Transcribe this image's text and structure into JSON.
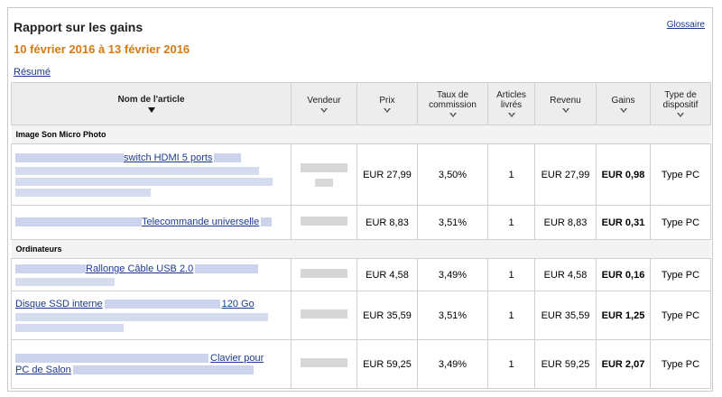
{
  "report": {
    "title": "Rapport sur les gains",
    "glossary_link": "Glossaire",
    "date_range": "10 février 2016 à 13 février 2016",
    "summary_link": "Résumé"
  },
  "table": {
    "headers": {
      "name": "Nom de l'article",
      "vendor": "Vendeur",
      "price": "Prix",
      "commission_l1": "Taux de",
      "commission_l2": "commission",
      "delivered_l1": "Articles",
      "delivered_l2": "livrés",
      "revenue": "Revenu",
      "gains": "Gains",
      "device_l1": "Type de",
      "device_l2": "dispositif"
    },
    "categories": [
      {
        "label": "Image Son Micro Photo",
        "rows": [
          {
            "name": "switch HDMI 5 ports",
            "price": "EUR 27,99",
            "commission": "3,50%",
            "delivered": "1",
            "revenue": "EUR 27,99",
            "gains": "EUR 0,98",
            "device": "Type PC"
          },
          {
            "name": "Telecommande universelle",
            "price": "EUR 8,83",
            "commission": "3,51%",
            "delivered": "1",
            "revenue": "EUR 8,83",
            "gains": "EUR 0,31",
            "device": "Type PC"
          }
        ]
      },
      {
        "label": "Ordinateurs",
        "rows": [
          {
            "name": "Rallonge Câble USB 2.0",
            "price": "EUR 4,58",
            "commission": "3,49%",
            "delivered": "1",
            "revenue": "EUR 4,58",
            "gains": "EUR 0,16",
            "device": "Type PC"
          },
          {
            "name_a": "Disque SSD interne",
            "name_b": "120 Go",
            "price": "EUR 35,59",
            "commission": "3,51%",
            "delivered": "1",
            "revenue": "EUR 35,59",
            "gains": "EUR 1,25",
            "device": "Type PC"
          },
          {
            "name_a": "Clavier pour",
            "name_b": "PC de Salon",
            "price": "EUR 59,25",
            "commission": "3,49%",
            "delivered": "1",
            "revenue": "EUR 59,25",
            "gains": "EUR 2,07",
            "device": "Type PC"
          }
        ]
      }
    ]
  }
}
